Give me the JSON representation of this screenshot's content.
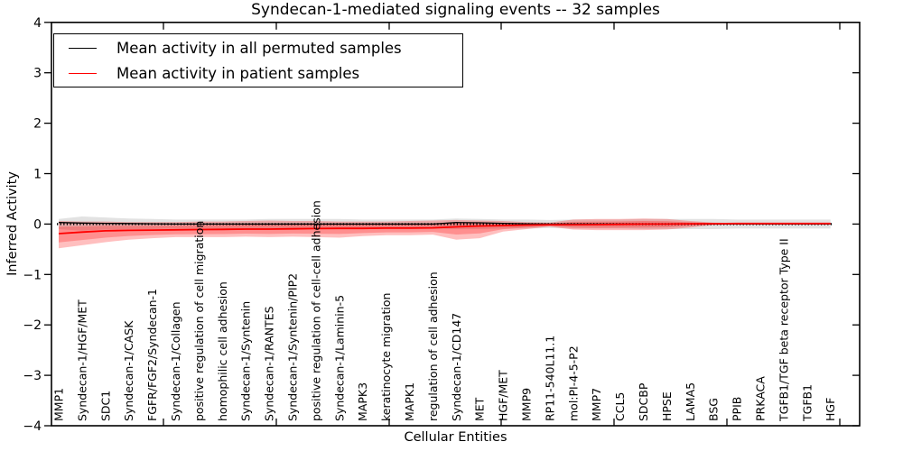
{
  "chart_data": {
    "type": "line",
    "title": "Syndecan-1-mediated signaling events -- 32 samples",
    "xlabel": "Cellular Entities",
    "ylabel": "Inferred Activity",
    "ylim": [
      -4,
      4
    ],
    "yticks": [
      4,
      3,
      2,
      1,
      0,
      -1,
      -2,
      -3,
      -4
    ],
    "grid": false,
    "legend_position": "upper left",
    "zero_line": {
      "style": "dotted",
      "color": "#000000"
    },
    "categories": [
      "MMP1",
      "Syndecan-1/HGF/MET",
      "SDC1",
      "Syndecan-1/CASK",
      "FGFR/FGF2/Syndecan-1",
      "Syndecan-1/Collagen",
      "positive regulation of cell migration",
      "homophilic cell adhesion",
      "Syndecan-1/Syntenin",
      "Syndecan-1/RANTES",
      "Syndecan-1/Syntenin/PIP2",
      "positive regulation of cell-cell adhesion",
      "Syndecan-1/Laminin-5",
      "MAPK3",
      "keratinocyte migration",
      "MAPK1",
      "regulation of cell adhesion",
      "Syndecan-1/CD147",
      "MET",
      "HGF/MET",
      "MMP9",
      "RP11-540L11.1",
      "mol:PI-4-5-P2",
      "MMP7",
      "CCL5",
      "SDCBP",
      "HPSE",
      "LAMA5",
      "BSG",
      "PPIB",
      "PRKACA",
      "TGFB1/TGF beta receptor Type II",
      "TGFB1",
      "HGF"
    ],
    "series": [
      {
        "name": "Mean activity in all permuted samples",
        "color": "#000000",
        "band_color": "#e2e2e2",
        "values": [
          0.03,
          0.02,
          0.015,
          0.01,
          0.005,
          0,
          0,
          0,
          0,
          0,
          0,
          0,
          0,
          0,
          0,
          0,
          0,
          0.03,
          0.025,
          0.015,
          0.005,
          0,
          0,
          0,
          0,
          0,
          0,
          0,
          0,
          0,
          0,
          0,
          0,
          0
        ],
        "band_hi": [
          0.1,
          0.15,
          0.13,
          0.11,
          0.1,
          0.09,
          0.09,
          0.09,
          0.09,
          0.1,
          0.1,
          0.1,
          0.1,
          0.09,
          0.09,
          0.09,
          0.09,
          0.11,
          0.1,
          0.09,
          0.09,
          0.08,
          0.09,
          0.09,
          0.09,
          0.1,
          0.1,
          0.1,
          0.1,
          0.09,
          0.09,
          0.09,
          0.09,
          0.09
        ],
        "band_lo": [
          -0.1,
          -0.13,
          -0.11,
          -0.1,
          -0.1,
          -0.09,
          -0.09,
          -0.09,
          -0.09,
          -0.1,
          -0.1,
          -0.1,
          -0.1,
          -0.09,
          -0.09,
          -0.09,
          -0.09,
          -0.1,
          -0.1,
          -0.09,
          -0.09,
          -0.08,
          -0.09,
          -0.09,
          -0.09,
          -0.1,
          -0.1,
          -0.1,
          -0.1,
          -0.09,
          -0.09,
          -0.09,
          -0.09,
          -0.09
        ]
      },
      {
        "name": "Mean activity in patient samples",
        "color": "#ff0000",
        "band_color": "rgba(255,0,0,0.25)",
        "values": [
          -0.19,
          -0.16,
          -0.135,
          -0.125,
          -0.12,
          -0.115,
          -0.11,
          -0.105,
          -0.1,
          -0.1,
          -0.095,
          -0.09,
          -0.085,
          -0.085,
          -0.08,
          -0.08,
          -0.075,
          -0.055,
          -0.04,
          -0.03,
          -0.02,
          -0.015,
          -0.012,
          -0.01,
          -0.005,
          0,
          0,
          0.005,
          0.008,
          0.01,
          0.01,
          0.01,
          0.01,
          0.01
        ],
        "band_hi": [
          0.06,
          0.05,
          0.05,
          0.04,
          0.04,
          0.04,
          0.05,
          0.05,
          0.06,
          0.07,
          0.06,
          0.06,
          0.05,
          0.05,
          0.05,
          0.06,
          0.07,
          0.08,
          0.07,
          0.06,
          0.04,
          0.03,
          0.09,
          0.1,
          0.1,
          0.11,
          0.1,
          0.06,
          0.03,
          0.02,
          0.02,
          0.02,
          0.02,
          0.02
        ],
        "band_lo": [
          -0.48,
          -0.42,
          -0.36,
          -0.31,
          -0.28,
          -0.26,
          -0.26,
          -0.26,
          -0.25,
          -0.26,
          -0.25,
          -0.26,
          -0.27,
          -0.24,
          -0.22,
          -0.22,
          -0.21,
          -0.31,
          -0.28,
          -0.15,
          -0.1,
          -0.05,
          -0.11,
          -0.12,
          -0.12,
          -0.12,
          -0.11,
          -0.07,
          -0.02,
          -0.005,
          -0.005,
          -0.005,
          -0.005,
          -0.005
        ]
      }
    ]
  }
}
